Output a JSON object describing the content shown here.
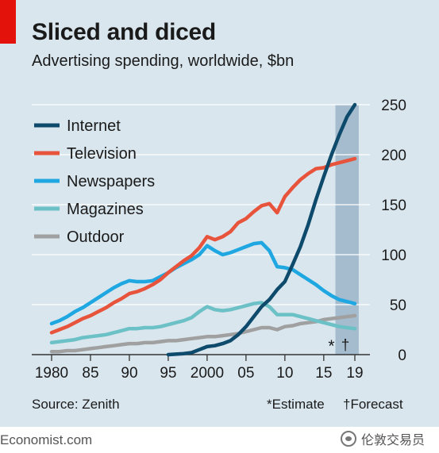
{
  "header": {
    "title": "Sliced and diced",
    "subtitle": "Advertising spending, worldwide, $bn"
  },
  "footer": {
    "source": "Source: Zenith",
    "estimate_note": "*Estimate",
    "forecast_note": "†Forecast",
    "brand": "Economist.com",
    "wechat_label": "伦敦交易员"
  },
  "chart_data": {
    "type": "line",
    "ylim": [
      0,
      250
    ],
    "xlim": [
      1980,
      2019
    ],
    "yticks": [
      0,
      50,
      100,
      150,
      200,
      250
    ],
    "xticks": [
      {
        "value": 1980,
        "label": "1980"
      },
      {
        "value": 1985,
        "label": "85"
      },
      {
        "value": 1990,
        "label": "90"
      },
      {
        "value": 1995,
        "label": "95"
      },
      {
        "value": 2000,
        "label": "2000"
      },
      {
        "value": 2005,
        "label": "05"
      },
      {
        "value": 2010,
        "label": "10"
      },
      {
        "value": 2015,
        "label": "15"
      },
      {
        "value": 2019,
        "label": "19"
      }
    ],
    "shaded_region": [
      2017,
      2019
    ],
    "estimate_mark": "*",
    "forecast_mark": "†",
    "legend_position": "top-left",
    "series": [
      {
        "name": "Internet",
        "color": "#0d4a6b",
        "x": [
          1995,
          1996,
          1997,
          1998,
          1999,
          2000,
          2001,
          2002,
          2003,
          2004,
          2005,
          2006,
          2007,
          2008,
          2009,
          2010,
          2011,
          2012,
          2013,
          2014,
          2015,
          2016,
          2017,
          2018,
          2019
        ],
        "y": [
          0,
          0.5,
          1,
          2,
          5,
          8,
          9,
          11,
          14,
          20,
          28,
          38,
          48,
          55,
          65,
          73,
          90,
          108,
          130,
          155,
          178,
          200,
          220,
          238,
          250
        ]
      },
      {
        "name": "Television",
        "color": "#e8533b",
        "x": [
          1980,
          1981,
          1982,
          1983,
          1984,
          1985,
          1986,
          1987,
          1988,
          1989,
          1990,
          1991,
          1992,
          1993,
          1994,
          1995,
          1996,
          1997,
          1998,
          1999,
          2000,
          2001,
          2002,
          2003,
          2004,
          2005,
          2006,
          2007,
          2008,
          2009,
          2010,
          2011,
          2012,
          2013,
          2014,
          2015,
          2016,
          2017,
          2018,
          2019
        ],
        "y": [
          22,
          25,
          28,
          32,
          36,
          39,
          43,
          47,
          52,
          56,
          61,
          63,
          66,
          70,
          75,
          82,
          88,
          94,
          99,
          107,
          118,
          115,
          118,
          123,
          132,
          136,
          143,
          149,
          151,
          142,
          158,
          167,
          175,
          181,
          186,
          187,
          190,
          192,
          194,
          196
        ]
      },
      {
        "name": "Newspapers",
        "color": "#1ea7e1",
        "x": [
          1980,
          1981,
          1982,
          1983,
          1984,
          1985,
          1986,
          1987,
          1988,
          1989,
          1990,
          1991,
          1992,
          1993,
          1994,
          1995,
          1996,
          1997,
          1998,
          1999,
          2000,
          2001,
          2002,
          2003,
          2004,
          2005,
          2006,
          2007,
          2008,
          2009,
          2010,
          2011,
          2012,
          2013,
          2014,
          2015,
          2016,
          2017,
          2018,
          2019
        ],
        "y": [
          31,
          34,
          38,
          43,
          47,
          52,
          57,
          62,
          67,
          71,
          74,
          73,
          73,
          74,
          78,
          82,
          87,
          91,
          95,
          100,
          109,
          104,
          100,
          102,
          105,
          108,
          111,
          112,
          104,
          88,
          87,
          85,
          80,
          75,
          70,
          64,
          59,
          55,
          53,
          51
        ]
      },
      {
        "name": "Magazines",
        "color": "#6cc1c6",
        "x": [
          1980,
          1981,
          1982,
          1983,
          1984,
          1985,
          1986,
          1987,
          1988,
          1989,
          1990,
          1991,
          1992,
          1993,
          1994,
          1995,
          1996,
          1997,
          1998,
          1999,
          2000,
          2001,
          2002,
          2003,
          2004,
          2005,
          2006,
          2007,
          2008,
          2009,
          2010,
          2011,
          2012,
          2013,
          2014,
          2015,
          2016,
          2017,
          2018,
          2019
        ],
        "y": [
          12,
          13,
          14,
          15,
          17,
          18,
          19,
          20,
          22,
          24,
          26,
          26,
          27,
          27,
          28,
          30,
          32,
          34,
          37,
          43,
          48,
          45,
          44,
          45,
          47,
          49,
          51,
          52,
          48,
          40,
          40,
          40,
          38,
          36,
          34,
          32,
          30,
          28,
          27,
          26
        ]
      },
      {
        "name": "Outdoor",
        "color": "#a0a0a0",
        "x": [
          1980,
          1981,
          1982,
          1983,
          1984,
          1985,
          1986,
          1987,
          1988,
          1989,
          1990,
          1991,
          1992,
          1993,
          1994,
          1995,
          1996,
          1997,
          1998,
          1999,
          2000,
          2001,
          2002,
          2003,
          2004,
          2005,
          2006,
          2007,
          2008,
          2009,
          2010,
          2011,
          2012,
          2013,
          2014,
          2015,
          2016,
          2017,
          2018,
          2019
        ],
        "y": [
          3,
          3,
          4,
          4,
          5,
          6,
          7,
          8,
          9,
          10,
          11,
          11,
          12,
          12,
          13,
          14,
          14,
          15,
          16,
          17,
          18,
          18,
          19,
          20,
          21,
          23,
          25,
          27,
          27,
          25,
          28,
          29,
          31,
          32,
          33,
          35,
          36,
          37,
          38,
          39
        ]
      }
    ]
  }
}
